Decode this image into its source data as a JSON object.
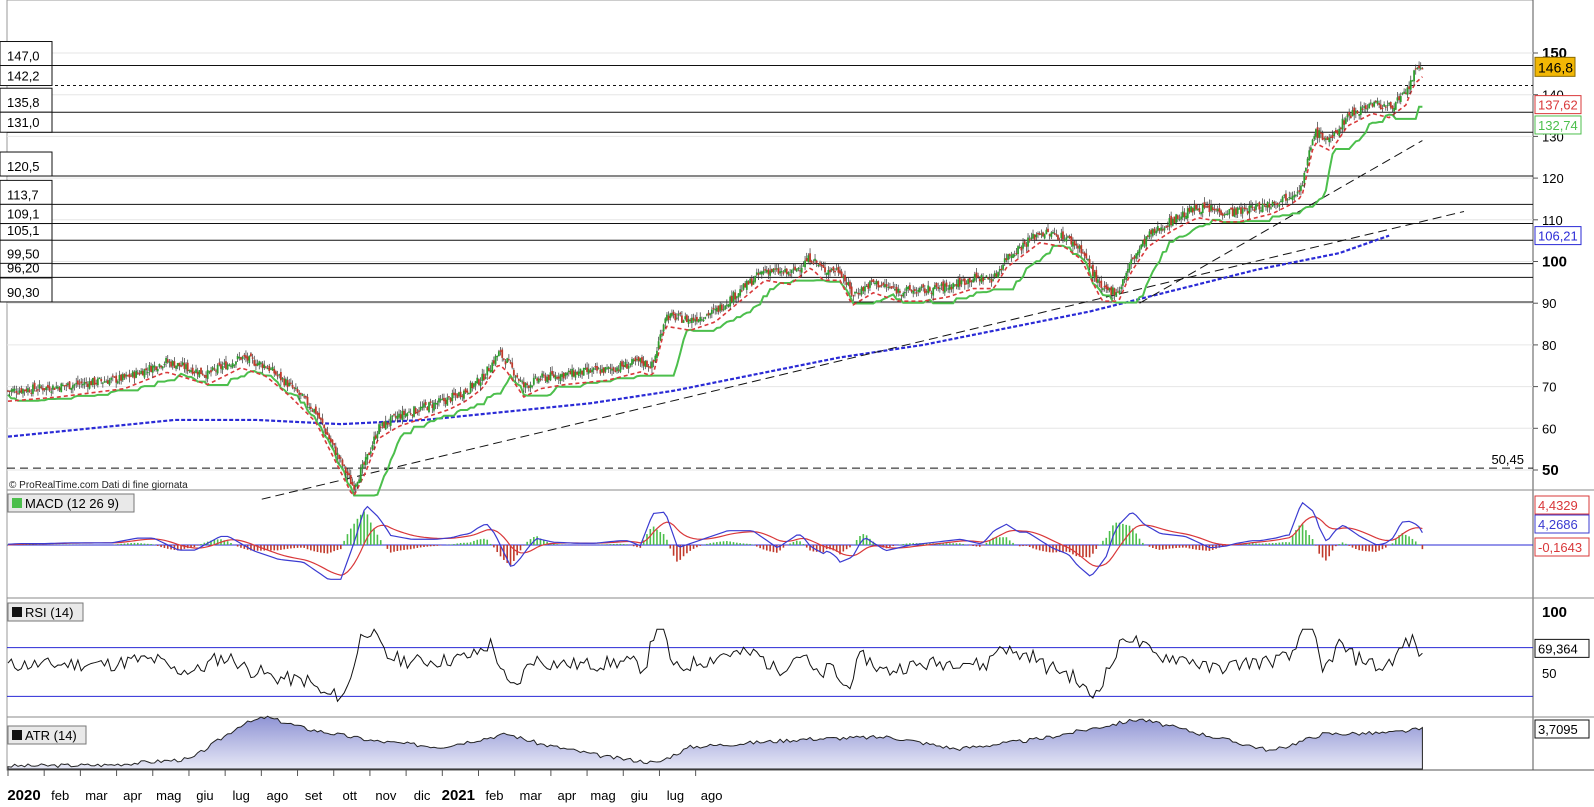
{
  "watermark": "© ProRealTime.com  Dati di fine giornata",
  "panels": {
    "macd": {
      "label": "MACD (12 26 9)",
      "values": [
        "4,4329",
        "4,2686",
        "-0,1643"
      ]
    },
    "rsi": {
      "label": "RSI (14)",
      "value": "69,364",
      "ticks": [
        "100",
        "50"
      ]
    },
    "atr": {
      "label": "ATR (14)",
      "value": "3,7095"
    }
  },
  "colors": {
    "price_tag": "#f2b705",
    "red_line": "#d9383a",
    "green_line": "#4cbf4c",
    "ma_blue": "#2a2ad6",
    "macd_blue": "#3b3bd1",
    "macd_red": "#d9383a",
    "hist_green": "#4cbf4c",
    "hist_red": "#c0392b",
    "atr_fill": "#a9addb"
  },
  "chart_data": {
    "type": "candlestick",
    "x_labels": [
      "2020",
      "feb",
      "mar",
      "apr",
      "mag",
      "giu",
      "lug",
      "ago",
      "set",
      "ott",
      "nov",
      "dic",
      "2021",
      "feb",
      "mar",
      "apr",
      "mag",
      "giu",
      "lug",
      "ago"
    ],
    "y_ticks": [
      "150",
      "140",
      "130",
      "120",
      "110",
      "100",
      "90",
      "80",
      "70",
      "60",
      "50"
    ],
    "ylim": [
      42,
      150
    ],
    "last_price": "146,8",
    "right_tags": [
      {
        "label": "137,62",
        "value": 137.62,
        "color": "#d9383a"
      },
      {
        "label": "132,74",
        "value": 132.74,
        "color": "#4cbf4c"
      },
      {
        "label": "106,21",
        "value": 106.21,
        "color": "#2a2ad6"
      }
    ],
    "support_resistance": [
      {
        "label": "147,0",
        "value": 147.0
      },
      {
        "label": "142,2",
        "value": 142.2
      },
      {
        "label": "135,8",
        "value": 135.8
      },
      {
        "label": "131,0",
        "value": 131.0
      },
      {
        "label": "120,5",
        "value": 120.5
      },
      {
        "label": "113,7",
        "value": 113.7
      },
      {
        "label": "109,1",
        "value": 109.1
      },
      {
        "label": "105,1",
        "value": 105.1
      },
      {
        "label": "99,50",
        "value": 99.5
      },
      {
        "label": "96,20",
        "value": 96.2
      },
      {
        "label": "90,30",
        "value": 90.3
      }
    ],
    "dashed_level": {
      "label": "50,45",
      "value": 50.45
    },
    "close_anchors": [
      [
        0,
        69
      ],
      [
        6,
        70
      ],
      [
        14,
        72
      ],
      [
        19,
        76
      ],
      [
        24,
        73
      ],
      [
        28,
        77
      ],
      [
        31,
        75
      ],
      [
        34,
        70
      ],
      [
        37,
        64
      ],
      [
        39,
        56
      ],
      [
        41.5,
        46
      ],
      [
        43,
        52
      ],
      [
        44.5,
        60
      ],
      [
        47,
        63
      ],
      [
        50,
        65
      ],
      [
        53,
        67
      ],
      [
        55,
        69
      ],
      [
        57,
        72
      ],
      [
        59,
        78
      ],
      [
        60,
        76
      ],
      [
        62,
        70
      ],
      [
        64,
        72
      ],
      [
        67,
        73
      ],
      [
        72,
        74
      ],
      [
        76,
        76
      ],
      [
        77.5,
        75
      ],
      [
        79,
        87
      ],
      [
        82,
        86
      ],
      [
        85,
        88
      ],
      [
        88,
        93
      ],
      [
        91,
        98
      ],
      [
        94,
        97
      ],
      [
        96.5,
        101
      ],
      [
        98,
        98
      ],
      [
        100,
        98
      ],
      [
        101.5,
        92
      ],
      [
        104,
        95
      ],
      [
        107,
        93
      ],
      [
        110,
        93
      ],
      [
        113,
        94
      ],
      [
        116,
        96
      ],
      [
        118.5,
        96
      ],
      [
        120,
        101
      ],
      [
        122,
        104
      ],
      [
        124,
        107
      ],
      [
        127,
        106
      ],
      [
        129,
        103
      ],
      [
        131.5,
        93
      ],
      [
        133.5,
        93
      ],
      [
        135,
        100
      ],
      [
        137,
        106
      ],
      [
        140,
        110
      ],
      [
        143,
        113
      ],
      [
        146,
        112
      ],
      [
        148,
        112
      ],
      [
        150,
        113
      ],
      [
        152,
        114
      ],
      [
        154,
        116
      ],
      [
        155.5,
        118
      ],
      [
        157,
        131
      ],
      [
        159,
        129
      ],
      [
        161,
        135
      ],
      [
        164,
        138
      ],
      [
        166,
        137
      ],
      [
        168,
        140
      ],
      [
        169,
        145
      ],
      [
        170,
        146.8
      ]
    ],
    "series": [
      {
        "name": "ma_blue",
        "values": [
          [
            0,
            58
          ],
          [
            20,
            62
          ],
          [
            30,
            62
          ],
          [
            40,
            61
          ],
          [
            50,
            62
          ],
          [
            60,
            64
          ],
          [
            70,
            66
          ],
          [
            80,
            69
          ],
          [
            90,
            73
          ],
          [
            100,
            77
          ],
          [
            110,
            80
          ],
          [
            120,
            84
          ],
          [
            130,
            88
          ],
          [
            140,
            93
          ],
          [
            150,
            98
          ],
          [
            160,
            102
          ],
          [
            166,
            106.21
          ]
        ]
      },
      {
        "name": "trend_long",
        "values": [
          [
            30.5,
            43
          ],
          [
            175,
            112
          ]
        ]
      },
      {
        "name": "trend_short",
        "values": [
          [
            136,
            90
          ],
          [
            170,
            129
          ]
        ]
      }
    ]
  }
}
